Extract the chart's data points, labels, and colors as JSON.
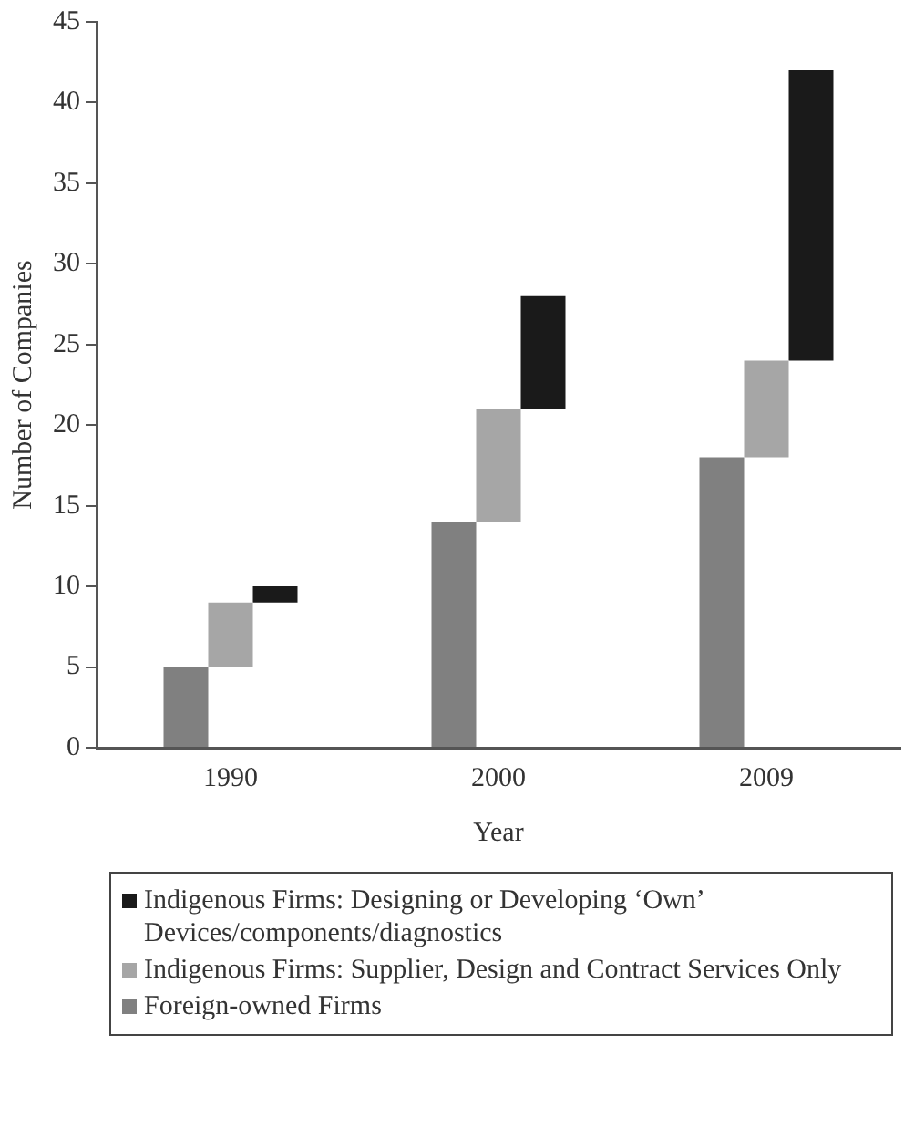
{
  "chart_data": {
    "type": "bar",
    "xlabel": "Year",
    "ylabel": "Number of Companies",
    "categories": [
      "1990",
      "2000",
      "2009"
    ],
    "series": [
      {
        "name": "Foreign-owned Firms",
        "color": "#808080",
        "values": [
          5,
          14,
          18
        ],
        "base": [
          0,
          0,
          0
        ]
      },
      {
        "name": "Indigenous Firms: Supplier, Design and Contract Services Only",
        "color": "#a6a6a6",
        "values": [
          4,
          7,
          6
        ],
        "base": [
          5,
          14,
          18
        ]
      },
      {
        "name": "Indigenous Firms: Designing or Developing ‘Own’ Devices/components/diagnostics",
        "color": "#1a1a1a",
        "values": [
          1,
          7,
          18
        ],
        "base": [
          9,
          21,
          24
        ]
      }
    ],
    "ylim": [
      0,
      45
    ],
    "yticks": [
      0,
      5,
      10,
      15,
      20,
      25,
      30,
      35,
      40,
      45
    ],
    "grid": false,
    "legend": "bottom"
  }
}
